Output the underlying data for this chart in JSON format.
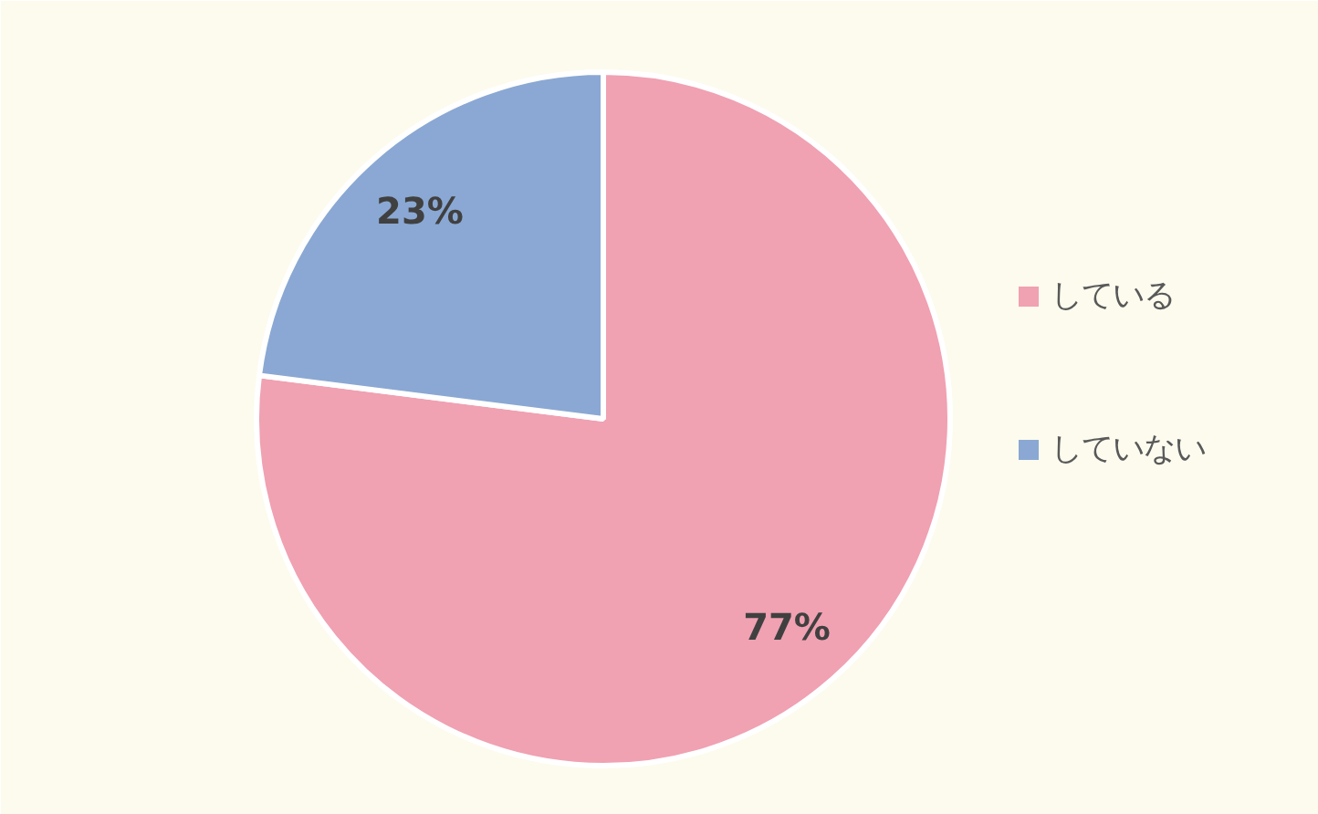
{
  "chart_data": {
    "type": "pie",
    "categories": [
      "している",
      "していない"
    ],
    "values": [
      77,
      23
    ],
    "colors": [
      "#f0a1b2",
      "#8aa8d3"
    ],
    "value_labels": [
      "77%",
      "23%"
    ],
    "legend": "right"
  }
}
